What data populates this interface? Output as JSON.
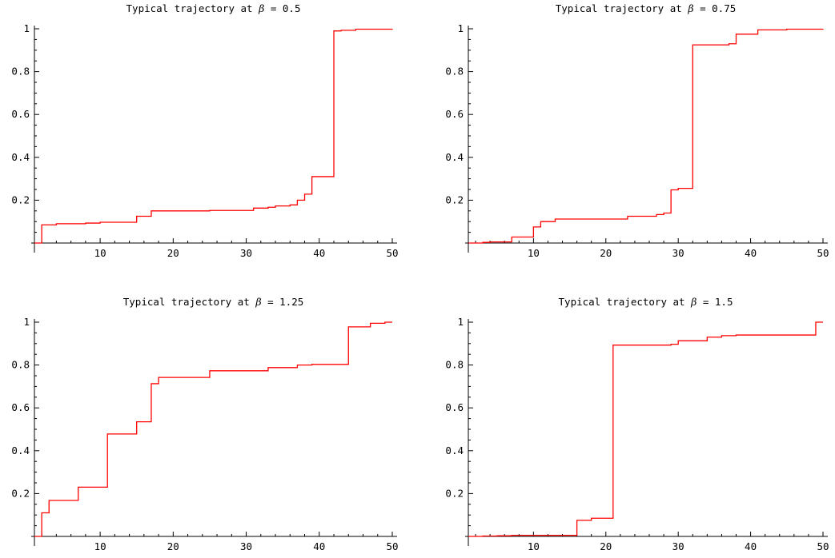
{
  "chart_data": [
    {
      "type": "line",
      "title_prefix": "Typical trajectory at ",
      "title_symbol": "β",
      "title_suffix": " = 0.5",
      "xlim": [
        1,
        50
      ],
      "ylim": [
        0,
        1
      ],
      "x_ticks": [
        "10",
        "20",
        "30",
        "40",
        "50"
      ],
      "y_ticks": [
        "0.2",
        "0.4",
        "0.6",
        "0.8",
        "1"
      ],
      "grid": false,
      "series": [
        {
          "color": "#ff0000",
          "step": true,
          "points": [
            [
              1,
              0
            ],
            [
              2,
              0.085
            ],
            [
              4,
              0.09
            ],
            [
              8,
              0.093
            ],
            [
              10,
              0.097
            ],
            [
              15,
              0.125
            ],
            [
              17,
              0.15
            ],
            [
              25,
              0.152
            ],
            [
              31,
              0.163
            ],
            [
              33,
              0.167
            ],
            [
              34,
              0.173
            ],
            [
              36,
              0.178
            ],
            [
              37,
              0.2
            ],
            [
              38,
              0.228
            ],
            [
              39,
              0.31
            ],
            [
              42,
              0.99
            ],
            [
              43,
              0.993
            ],
            [
              45,
              0.998
            ],
            [
              50,
              1.0
            ]
          ]
        }
      ]
    },
    {
      "type": "line",
      "title_prefix": "Typical trajectory at ",
      "title_symbol": "β",
      "title_suffix": " = 0.75",
      "xlim": [
        1,
        50
      ],
      "ylim": [
        0,
        1
      ],
      "x_ticks": [
        "10",
        "20",
        "30",
        "40",
        "50"
      ],
      "y_ticks": [
        "0.2",
        "0.4",
        "0.6",
        "0.8",
        "1"
      ],
      "grid": false,
      "series": [
        {
          "color": "#ff0000",
          "step": true,
          "points": [
            [
              1,
              0
            ],
            [
              3,
              0.003
            ],
            [
              4,
              0.005
            ],
            [
              7,
              0.028
            ],
            [
              10,
              0.075
            ],
            [
              11,
              0.1
            ],
            [
              13,
              0.112
            ],
            [
              23,
              0.125
            ],
            [
              27,
              0.133
            ],
            [
              28,
              0.14
            ],
            [
              29,
              0.248
            ],
            [
              30,
              0.255
            ],
            [
              32,
              0.925
            ],
            [
              37,
              0.93
            ],
            [
              38,
              0.975
            ],
            [
              41,
              0.995
            ],
            [
              45,
              0.998
            ],
            [
              50,
              1.0
            ]
          ]
        }
      ]
    },
    {
      "type": "line",
      "title_prefix": "Typical trajectory at ",
      "title_symbol": "β",
      "title_suffix": " = 1.25",
      "xlim": [
        1,
        50
      ],
      "ylim": [
        0,
        1
      ],
      "x_ticks": [
        "10",
        "20",
        "30",
        "40",
        "50"
      ],
      "y_ticks": [
        "0.2",
        "0.4",
        "0.6",
        "0.8",
        "1"
      ],
      "grid": false,
      "series": [
        {
          "color": "#ff0000",
          "step": true,
          "points": [
            [
              1,
              0
            ],
            [
              2,
              0.11
            ],
            [
              3,
              0.168
            ],
            [
              7,
              0.23
            ],
            [
              11,
              0.478
            ],
            [
              15,
              0.535
            ],
            [
              17,
              0.713
            ],
            [
              18,
              0.742
            ],
            [
              25,
              0.773
            ],
            [
              33,
              0.788
            ],
            [
              37,
              0.8
            ],
            [
              39,
              0.803
            ],
            [
              44,
              0.978
            ],
            [
              47,
              0.995
            ],
            [
              49,
              1.0
            ],
            [
              50,
              1.0
            ]
          ]
        }
      ]
    },
    {
      "type": "line",
      "title_prefix": "Typical trajectory at ",
      "title_symbol": "β",
      "title_suffix": " = 1.5",
      "xlim": [
        1,
        50
      ],
      "ylim": [
        0,
        1
      ],
      "x_ticks": [
        "10",
        "20",
        "30",
        "40",
        "50"
      ],
      "y_ticks": [
        "0.2",
        "0.4",
        "0.6",
        "0.8",
        "1"
      ],
      "grid": false,
      "series": [
        {
          "color": "#ff0000",
          "step": true,
          "points": [
            [
              1,
              0
            ],
            [
              3,
              0.002
            ],
            [
              5,
              0.003
            ],
            [
              7,
              0.005
            ],
            [
              16,
              0.075
            ],
            [
              18,
              0.085
            ],
            [
              21,
              0.893
            ],
            [
              29,
              0.897
            ],
            [
              30,
              0.913
            ],
            [
              34,
              0.93
            ],
            [
              36,
              0.937
            ],
            [
              38,
              0.94
            ],
            [
              49,
              1.0
            ],
            [
              50,
              1.0
            ]
          ]
        }
      ]
    }
  ]
}
